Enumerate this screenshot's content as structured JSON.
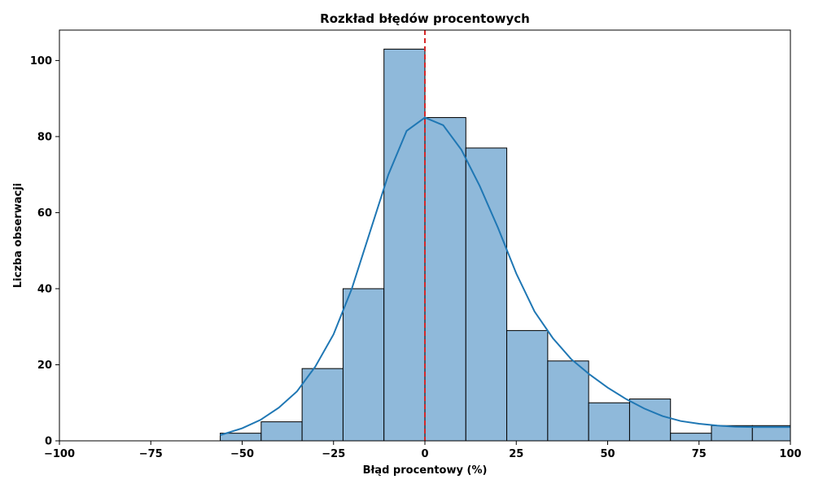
{
  "chart_data": {
    "type": "bar",
    "title": "Rozkład błędów procentowych",
    "xlabel": "Błąd procentowy (%)",
    "ylabel": "Liczba obserwacji",
    "xlim": [
      -100,
      100
    ],
    "ylim": [
      0,
      108
    ],
    "x_ticks": [
      -100,
      -75,
      -50,
      -25,
      0,
      25,
      50,
      75,
      100
    ],
    "x_tick_labels": [
      "−100",
      "−75",
      "−50",
      "−25",
      "0",
      "25",
      "50",
      "75",
      "100"
    ],
    "y_ticks": [
      0,
      20,
      40,
      60,
      80,
      100
    ],
    "y_tick_labels": [
      "0",
      "20",
      "40",
      "60",
      "80",
      "100"
    ],
    "bins": [
      {
        "start": -56.0,
        "end": -44.8,
        "count": 2
      },
      {
        "start": -44.8,
        "end": -33.6,
        "count": 5
      },
      {
        "start": -33.6,
        "end": -22.4,
        "count": 19
      },
      {
        "start": -22.4,
        "end": -11.2,
        "count": 40
      },
      {
        "start": -11.2,
        "end": 0.0,
        "count": 103
      },
      {
        "start": 0.0,
        "end": 11.2,
        "count": 85
      },
      {
        "start": 11.2,
        "end": 22.4,
        "count": 77
      },
      {
        "start": 22.4,
        "end": 33.6,
        "count": 29
      },
      {
        "start": 33.6,
        "end": 44.8,
        "count": 21
      },
      {
        "start": 44.8,
        "end": 56.0,
        "count": 10
      },
      {
        "start": 56.0,
        "end": 67.2,
        "count": 11
      },
      {
        "start": 67.2,
        "end": 78.4,
        "count": 2
      },
      {
        "start": 78.4,
        "end": 89.6,
        "count": 4
      },
      {
        "start": 89.6,
        "end": 100.8,
        "count": 4
      }
    ],
    "kde": {
      "x": [
        -56,
        -50,
        -45,
        -40,
        -35,
        -30,
        -25,
        -20,
        -15,
        -10,
        -5,
        0,
        5,
        10,
        15,
        20,
        25,
        30,
        35,
        40,
        45,
        50,
        55,
        60,
        65,
        70,
        75,
        80,
        85,
        90,
        95,
        100
      ],
      "y": [
        1.5,
        3.3,
        5.5,
        8.7,
        13,
        19.5,
        28,
        40,
        55,
        70,
        81.5,
        85,
        83,
        76.5,
        67,
        56,
        44,
        34,
        27,
        21.5,
        17.5,
        14,
        11,
        8.5,
        6.5,
        5.2,
        4.5,
        4.0,
        3.7,
        3.6,
        3.6,
        3.6
      ]
    },
    "reference_line": {
      "x": 0
    },
    "grid": false,
    "colors": {
      "bar_fill": "#8fb9da",
      "bar_edge": "#000000",
      "kde_line": "#1f77b4",
      "reference_line": "#d62728"
    }
  }
}
